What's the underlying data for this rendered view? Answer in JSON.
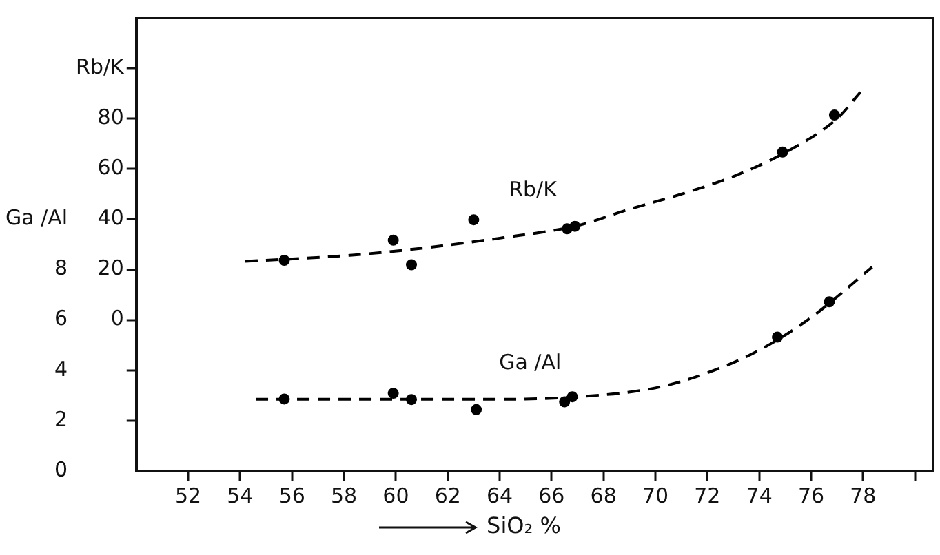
{
  "chart_data": {
    "type": "scatter",
    "xlabel": "SiO₂ %",
    "xlim": [
      50,
      80.7
    ],
    "xticks": [
      52,
      54,
      56,
      58,
      60,
      62,
      64,
      66,
      68,
      70,
      72,
      74,
      76,
      78,
      {
        "value": 80,
        "label": null
      }
    ],
    "ylim": [
      -60,
      120
    ],
    "yticks": [
      {
        "value": -40,
        "label": null
      },
      {
        "value": -20,
        "label": null
      },
      0,
      20,
      40,
      60,
      80,
      {
        "value": 100,
        "label": "Rb/K"
      }
    ],
    "y2lim": [
      0,
      18
    ],
    "y2ticks": [
      0,
      2,
      4,
      6,
      8,
      {
        "value": 10,
        "label": "Ga /Al"
      }
    ],
    "grid": false,
    "legend": false,
    "marker": "circle",
    "series": [
      {
        "name": "Rb/K",
        "color": "#000000",
        "x": [
          55.7,
          59.9,
          60.6,
          63.0,
          66.6,
          66.9,
          74.9,
          76.9
        ],
        "values": [
          23.7,
          31.7,
          21.9,
          39.8,
          36.2,
          37.2,
          66.7,
          81.4
        ]
      },
      {
        "name": "Ga /Al",
        "axis": "y2",
        "color": "#000000",
        "x": [
          55.7,
          59.9,
          60.6,
          63.1,
          66.5,
          66.8,
          74.7,
          76.7
        ],
        "values": [
          2.86,
          3.09,
          2.84,
          2.44,
          2.75,
          2.95,
          5.32,
          6.72
        ]
      },
      {
        "type": "line",
        "color": "#000000",
        "marker": "none",
        "line_style": "dashed",
        "x": [
          54.2,
          58,
          61,
          64,
          67,
          69,
          71,
          73,
          75,
          77,
          77.9
        ],
        "values": [
          23.3,
          25.5,
          28.5,
          32.5,
          37.5,
          44,
          50,
          57,
          66.5,
          80,
          90.5
        ]
      },
      {
        "type": "line",
        "axis": "y2",
        "color": "#000000",
        "marker": "none",
        "line_style": "dashed",
        "x": [
          54.6,
          60,
          64,
          67,
          70,
          72,
          74,
          76,
          78.35
        ],
        "values": [
          2.85,
          2.85,
          2.85,
          2.95,
          3.3,
          3.9,
          4.8,
          6.1,
          8.1
        ]
      }
    ]
  }
}
